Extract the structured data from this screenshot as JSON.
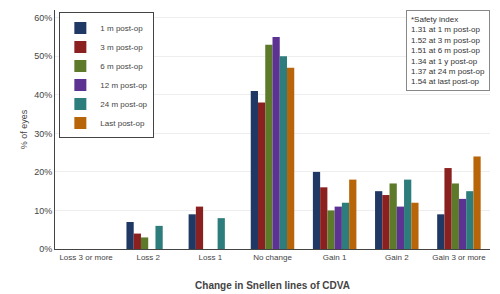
{
  "chart_data": {
    "type": "bar",
    "categories": [
      "Loss 3 or more",
      "Loss 2",
      "Loss 1",
      "No change",
      "Gain 1",
      "Gain 2",
      "Gain 3 or more"
    ],
    "series": [
      {
        "name": "1 m post-op",
        "color": "#1F3864",
        "values": [
          0,
          7,
          9,
          41,
          20,
          15,
          9
        ]
      },
      {
        "name": "3 m post-op",
        "color": "#8B2020",
        "values": [
          0,
          4,
          11,
          38,
          16,
          14,
          21
        ]
      },
      {
        "name": "6 m post-op",
        "color": "#5C7A29",
        "values": [
          0,
          3,
          0,
          53,
          10,
          17,
          17
        ]
      },
      {
        "name": "12 m post-op",
        "color": "#5C3292",
        "values": [
          0,
          0,
          0,
          55,
          11,
          11,
          13
        ]
      },
      {
        "name": "24 m post-op",
        "color": "#2E7D7D",
        "values": [
          0,
          6,
          8,
          50,
          12,
          18,
          15
        ]
      },
      {
        "name": "Last post-op",
        "color": "#B8650A",
        "values": [
          0,
          0,
          0,
          47,
          18,
          12,
          24
        ]
      }
    ],
    "xlabel": "Change in Snellen lines of CDVA",
    "ylabel": "% of eyes",
    "ylim": [
      0,
      62
    ],
    "yticks": [
      {
        "value": 0,
        "label": "0%"
      },
      {
        "value": 10,
        "label": "10%"
      },
      {
        "value": 20,
        "label": "20%"
      },
      {
        "value": 30,
        "label": "30%"
      },
      {
        "value": 40,
        "label": "40%"
      },
      {
        "value": 50,
        "label": "50%"
      },
      {
        "value": 60,
        "label": "60%"
      }
    ],
    "annotations": [
      "*Safety index\n1.31 at 1 m post-op\n1.52 at 3 m post-op\n1.51 at 6 m post-op\n1.34 at 1 y post-op\n1.37 at 24 m post-op\n1.54 at last post-op"
    ],
    "grid": true,
    "legend": "upper left"
  }
}
